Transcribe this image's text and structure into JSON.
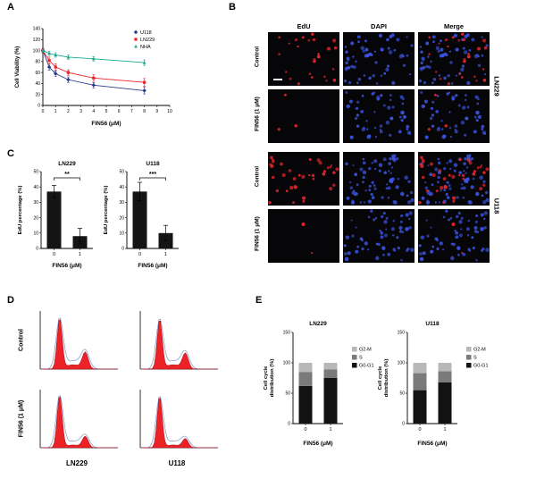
{
  "panels": {
    "A": {
      "label": "A",
      "chart": {
        "type": "line",
        "x": [
          0,
          0.5,
          1,
          2,
          4,
          8
        ],
        "series": [
          {
            "name": "U118",
            "color": "#2b3a8f",
            "marker": "diamond",
            "values": [
              100,
              70,
              58,
              47,
              37,
              27
            ],
            "err": [
              4,
              6,
              5,
              5,
              5,
              6
            ]
          },
          {
            "name": "LN229",
            "color": "#ec2227",
            "marker": "square",
            "values": [
              100,
              82,
              70,
              60,
              50,
              42
            ],
            "err": [
              4,
              6,
              6,
              5,
              6,
              7
            ]
          },
          {
            "name": "NHA",
            "color": "#17a98e",
            "marker": "triangle",
            "values": [
              100,
              95,
              92,
              88,
              85,
              78
            ],
            "err": [
              3,
              4,
              4,
              4,
              4,
              5
            ]
          }
        ],
        "xlabel": "FIN56 (μM)",
        "ylabel": "Cell Viability (%)",
        "xlim": [
          0,
          10
        ],
        "ylim": [
          0,
          140
        ],
        "yticks": [
          0,
          20,
          40,
          60,
          80,
          100,
          120,
          140
        ],
        "xticks": [
          0,
          1,
          2,
          3,
          4,
          5,
          6,
          7,
          8,
          9,
          10
        ]
      }
    },
    "B": {
      "label": "B",
      "col_headers": [
        "EdU",
        "DAPI",
        "Merge"
      ],
      "rows": [
        {
          "label": "Control",
          "edu": 26,
          "dapi": 55
        },
        {
          "label": "FIN56 (1 μM)",
          "edu": 3,
          "dapi": 50
        },
        {
          "label": "Control",
          "edu": 36,
          "dapi": 72
        },
        {
          "label": "FIN56 (1 μM)",
          "edu": 2,
          "dapi": 58
        }
      ],
      "group_labels": [
        "LN229",
        "U118"
      ]
    },
    "C": {
      "label": "C",
      "charts": [
        {
          "type": "bar",
          "title": "LN229",
          "categories": [
            "0",
            "1"
          ],
          "values": [
            37,
            8
          ],
          "errors": [
            4,
            5
          ],
          "sig": "**",
          "ylabel": "EdU percentage (%)",
          "xlabel": "FIN56 (μM)",
          "ylim": [
            0,
            50
          ],
          "yticks": [
            0,
            10,
            20,
            30,
            40,
            50
          ]
        },
        {
          "type": "bar",
          "title": "U118",
          "categories": [
            "0",
            "1"
          ],
          "values": [
            37,
            10
          ],
          "errors": [
            6,
            5
          ],
          "sig": "***",
          "ylabel": "EdU percentage (%)",
          "xlabel": "FIN56 (μM)",
          "ylim": [
            0,
            50
          ],
          "yticks": [
            0,
            10,
            20,
            30,
            40,
            50
          ]
        }
      ]
    },
    "D": {
      "label": "D",
      "row_labels": [
        "Control",
        "FIN56 (1 μM)"
      ],
      "col_labels": [
        "LN229",
        "U118"
      ],
      "plots": [
        {
          "g1": 0.92,
          "s": 0.08,
          "g2": 0.3
        },
        {
          "g1": 0.9,
          "s": 0.08,
          "g2": 0.28
        },
        {
          "g1": 0.95,
          "s": 0.05,
          "g2": 0.2
        },
        {
          "g1": 0.93,
          "s": 0.05,
          "g2": 0.16
        }
      ]
    },
    "E": {
      "label": "E",
      "charts": [
        {
          "type": "stacked-bar",
          "title": "LN229",
          "categories": [
            "0",
            "1"
          ],
          "series": [
            {
              "name": "G2-M",
              "color": "#b8b8b8",
              "values": [
                15,
                11
              ]
            },
            {
              "name": "S",
              "color": "#7a7a7a",
              "values": [
                23,
                14
              ]
            },
            {
              "name": "G0-G1",
              "color": "#121212",
              "values": [
                62,
                75
              ]
            }
          ],
          "ylabel_lines": [
            "Cell cycle",
            "distribution (%)"
          ],
          "xlabel": "FIN56 (μM)",
          "ylim": [
            0,
            150
          ],
          "yticks": [
            0,
            50,
            100,
            150
          ]
        },
        {
          "type": "stacked-bar",
          "title": "U118",
          "categories": [
            "0",
            "1"
          ],
          "series": [
            {
              "name": "G2-M",
              "color": "#b8b8b8",
              "values": [
                17,
                14
              ]
            },
            {
              "name": "S",
              "color": "#7a7a7a",
              "values": [
                28,
                18
              ]
            },
            {
              "name": "G0-G1",
              "color": "#121212",
              "values": [
                55,
                68
              ]
            }
          ],
          "ylabel_lines": [
            "Cell cycle",
            "distribution (%)"
          ],
          "xlabel": "FIN56 (μM)",
          "ylim": [
            0,
            150
          ],
          "yticks": [
            0,
            50,
            100,
            150
          ]
        }
      ]
    }
  }
}
